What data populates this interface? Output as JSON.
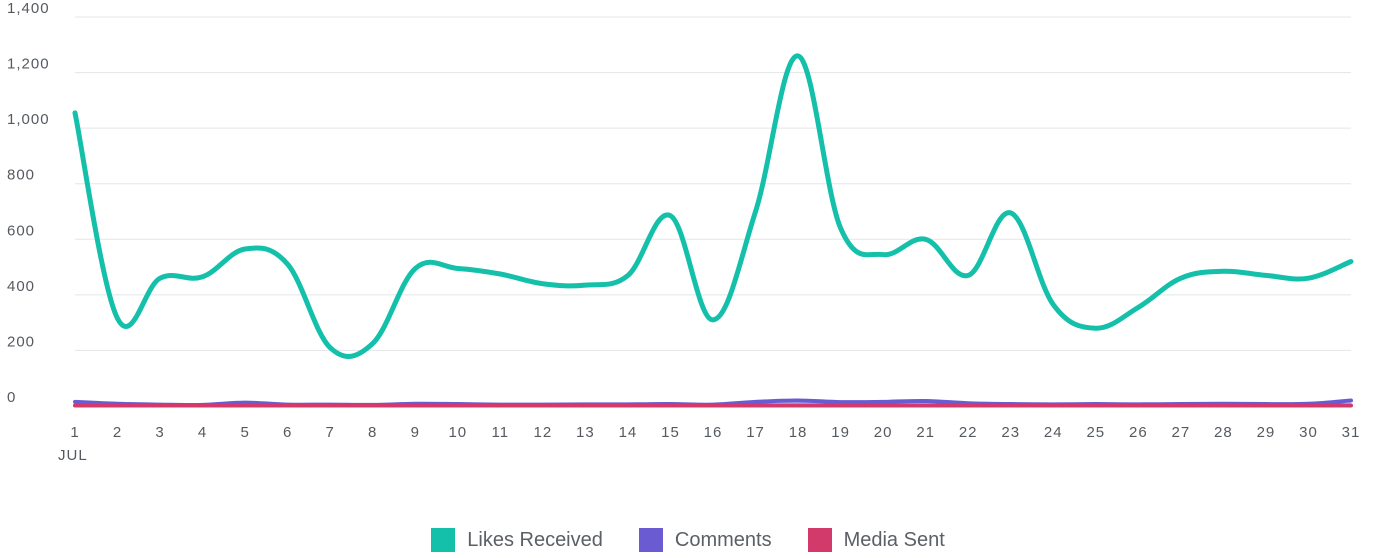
{
  "chart_data": {
    "type": "line",
    "x": [
      "1",
      "2",
      "3",
      "4",
      "5",
      "6",
      "7",
      "8",
      "9",
      "10",
      "11",
      "12",
      "13",
      "14",
      "15",
      "16",
      "17",
      "18",
      "19",
      "20",
      "21",
      "22",
      "23",
      "24",
      "25",
      "26",
      "27",
      "28",
      "29",
      "30",
      "31"
    ],
    "x_sublabel": "JUL",
    "y_ticks": [
      "0",
      "200",
      "400",
      "600",
      "800",
      "1,000",
      "1,200",
      "1,400"
    ],
    "ylim": [
      0,
      1400
    ],
    "grid": true,
    "legend_position": "bottom",
    "series": [
      {
        "name": "Likes Received",
        "color": "#14c0aa",
        "values": [
          1055,
          315,
          460,
          465,
          565,
          510,
          210,
          225,
          495,
          495,
          475,
          440,
          435,
          470,
          685,
          310,
          700,
          1260,
          640,
          545,
          600,
          470,
          695,
          365,
          280,
          355,
          460,
          485,
          470,
          460,
          520
        ]
      },
      {
        "name": "Comments",
        "color": "#6b5bd2",
        "values": [
          15,
          8,
          5,
          4,
          12,
          5,
          5,
          4,
          8,
          7,
          5,
          5,
          6,
          6,
          7,
          5,
          15,
          20,
          14,
          15,
          18,
          10,
          7,
          6,
          7,
          6,
          7,
          8,
          7,
          8,
          20
        ]
      },
      {
        "name": "Media Sent",
        "color": "#d13a6b",
        "values": [
          2,
          2,
          2,
          2,
          2,
          2,
          2,
          2,
          2,
          2,
          2,
          2,
          2,
          2,
          2,
          2,
          2,
          2,
          2,
          2,
          2,
          2,
          2,
          2,
          2,
          2,
          2,
          2,
          2,
          2,
          2
        ]
      }
    ]
  }
}
